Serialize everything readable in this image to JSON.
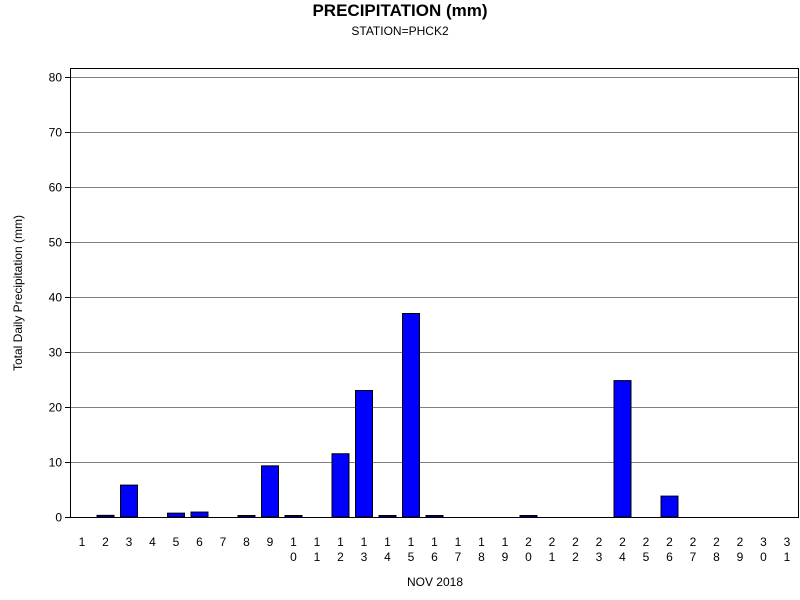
{
  "chart_data": {
    "type": "bar",
    "title": "PRECIPITATION (mm)",
    "subtitle": "STATION=PHCK2",
    "xlabel": "NOV 2018",
    "ylabel": "Total Daily Precipitation (mm)",
    "ylim": [
      0,
      80
    ],
    "yticks": [
      0,
      10,
      20,
      30,
      40,
      50,
      60,
      70,
      80
    ],
    "grid": true,
    "categories": [
      "1",
      "2",
      "3",
      "4",
      "5",
      "6",
      "7",
      "8",
      "9",
      "10",
      "11",
      "12",
      "13",
      "14",
      "15",
      "16",
      "17",
      "18",
      "19",
      "20",
      "21",
      "22",
      "23",
      "24",
      "25",
      "26",
      "27",
      "28",
      "29",
      "30",
      "31"
    ],
    "values": [
      0,
      0.3,
      5.8,
      0,
      0.7,
      0.9,
      0,
      0.2,
      9.3,
      0.2,
      0,
      11.5,
      23,
      0.2,
      37,
      0.2,
      0,
      0,
      0,
      0.2,
      0,
      0,
      0,
      24.8,
      0,
      3.8,
      0,
      0,
      0,
      0,
      0
    ],
    "bar_color": "#0000ff"
  }
}
